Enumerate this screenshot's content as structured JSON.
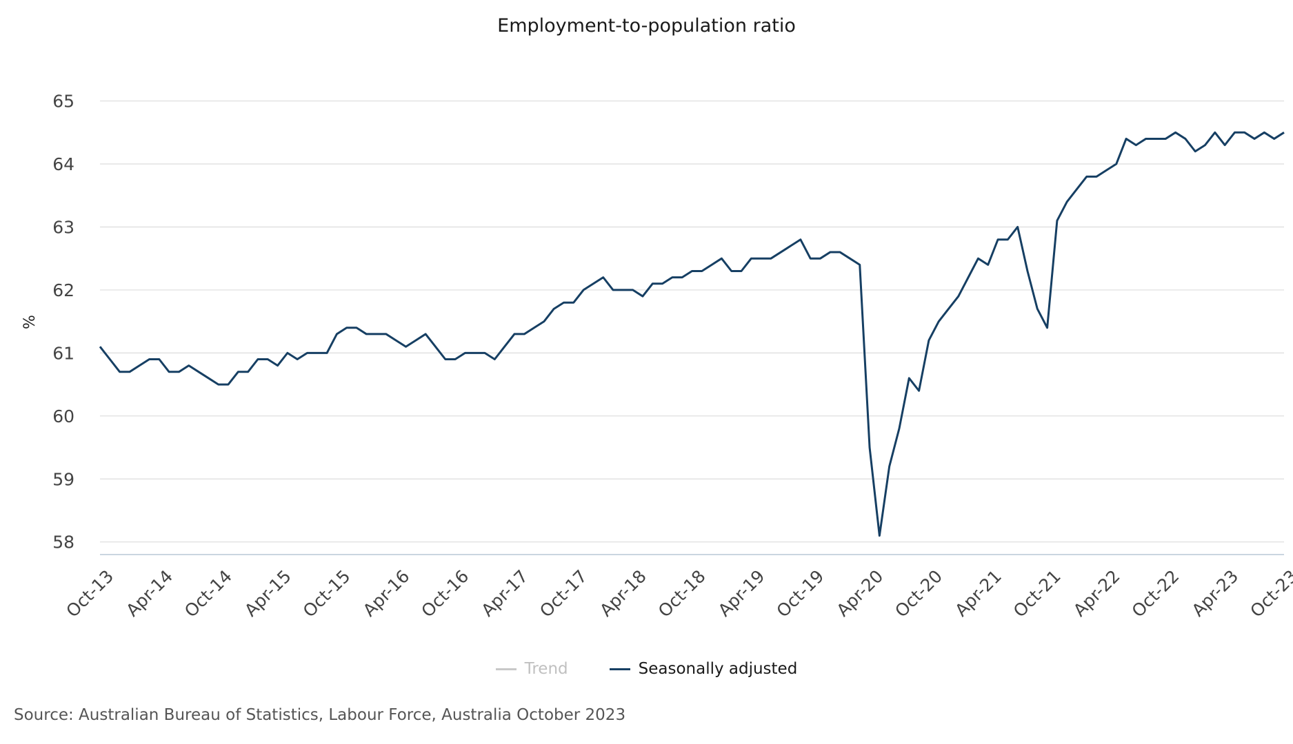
{
  "chart_data": {
    "type": "line",
    "title": "Employment-to-population ratio",
    "ylabel": "%",
    "xlabel": "",
    "ylim": [
      57.8,
      65.4
    ],
    "yticks": [
      58,
      59,
      60,
      61,
      62,
      63,
      64,
      65
    ],
    "x_start": "Oct-13",
    "x_end": "Oct-23",
    "x_tick_labels": [
      "Oct-13",
      "Apr-14",
      "Oct-14",
      "Apr-15",
      "Oct-15",
      "Apr-16",
      "Oct-16",
      "Apr-17",
      "Oct-17",
      "Apr-18",
      "Oct-18",
      "Apr-19",
      "Oct-19",
      "Apr-20",
      "Oct-20",
      "Apr-21",
      "Oct-21",
      "Apr-22",
      "Oct-22",
      "Apr-23",
      "Oct-23"
    ],
    "grid": true,
    "legend_position": "bottom",
    "series": [
      {
        "name": "Trend",
        "color": "#c8c8c8",
        "hidden": true,
        "values": []
      },
      {
        "name": "Seasonally adjusted",
        "color": "#163f63",
        "hidden": false,
        "values": [
          61.1,
          60.9,
          60.7,
          60.7,
          60.8,
          60.9,
          60.9,
          60.7,
          60.7,
          60.8,
          60.7,
          60.6,
          60.5,
          60.5,
          60.7,
          60.7,
          60.9,
          60.9,
          60.8,
          61.0,
          60.9,
          61.0,
          61.0,
          61.0,
          61.3,
          61.4,
          61.4,
          61.3,
          61.3,
          61.3,
          61.2,
          61.1,
          61.2,
          61.3,
          61.1,
          60.9,
          60.9,
          61.0,
          61.0,
          61.0,
          60.9,
          61.1,
          61.3,
          61.3,
          61.4,
          61.5,
          61.7,
          61.8,
          61.8,
          62.0,
          62.1,
          62.2,
          62.0,
          62.0,
          62.0,
          61.9,
          62.1,
          62.1,
          62.2,
          62.2,
          62.3,
          62.3,
          62.4,
          62.5,
          62.3,
          62.3,
          62.5,
          62.5,
          62.5,
          62.6,
          62.7,
          62.8,
          62.5,
          62.5,
          62.6,
          62.6,
          62.5,
          62.4,
          59.5,
          58.1,
          59.2,
          59.8,
          60.6,
          60.4,
          61.2,
          61.5,
          61.7,
          61.9,
          62.2,
          62.5,
          62.4,
          62.8,
          62.8,
          63.0,
          62.3,
          61.7,
          61.4,
          63.1,
          63.4,
          63.6,
          63.8,
          63.8,
          63.9,
          64.0,
          64.4,
          64.3,
          64.4,
          64.4,
          64.4,
          64.5,
          64.4,
          64.2,
          64.3,
          64.5,
          64.3,
          64.5,
          64.5,
          64.4,
          64.5,
          64.4,
          64.5
        ]
      }
    ]
  },
  "footer": {
    "source": "Source: Australian Bureau of Statistics, Labour Force, Australia October 2023"
  }
}
